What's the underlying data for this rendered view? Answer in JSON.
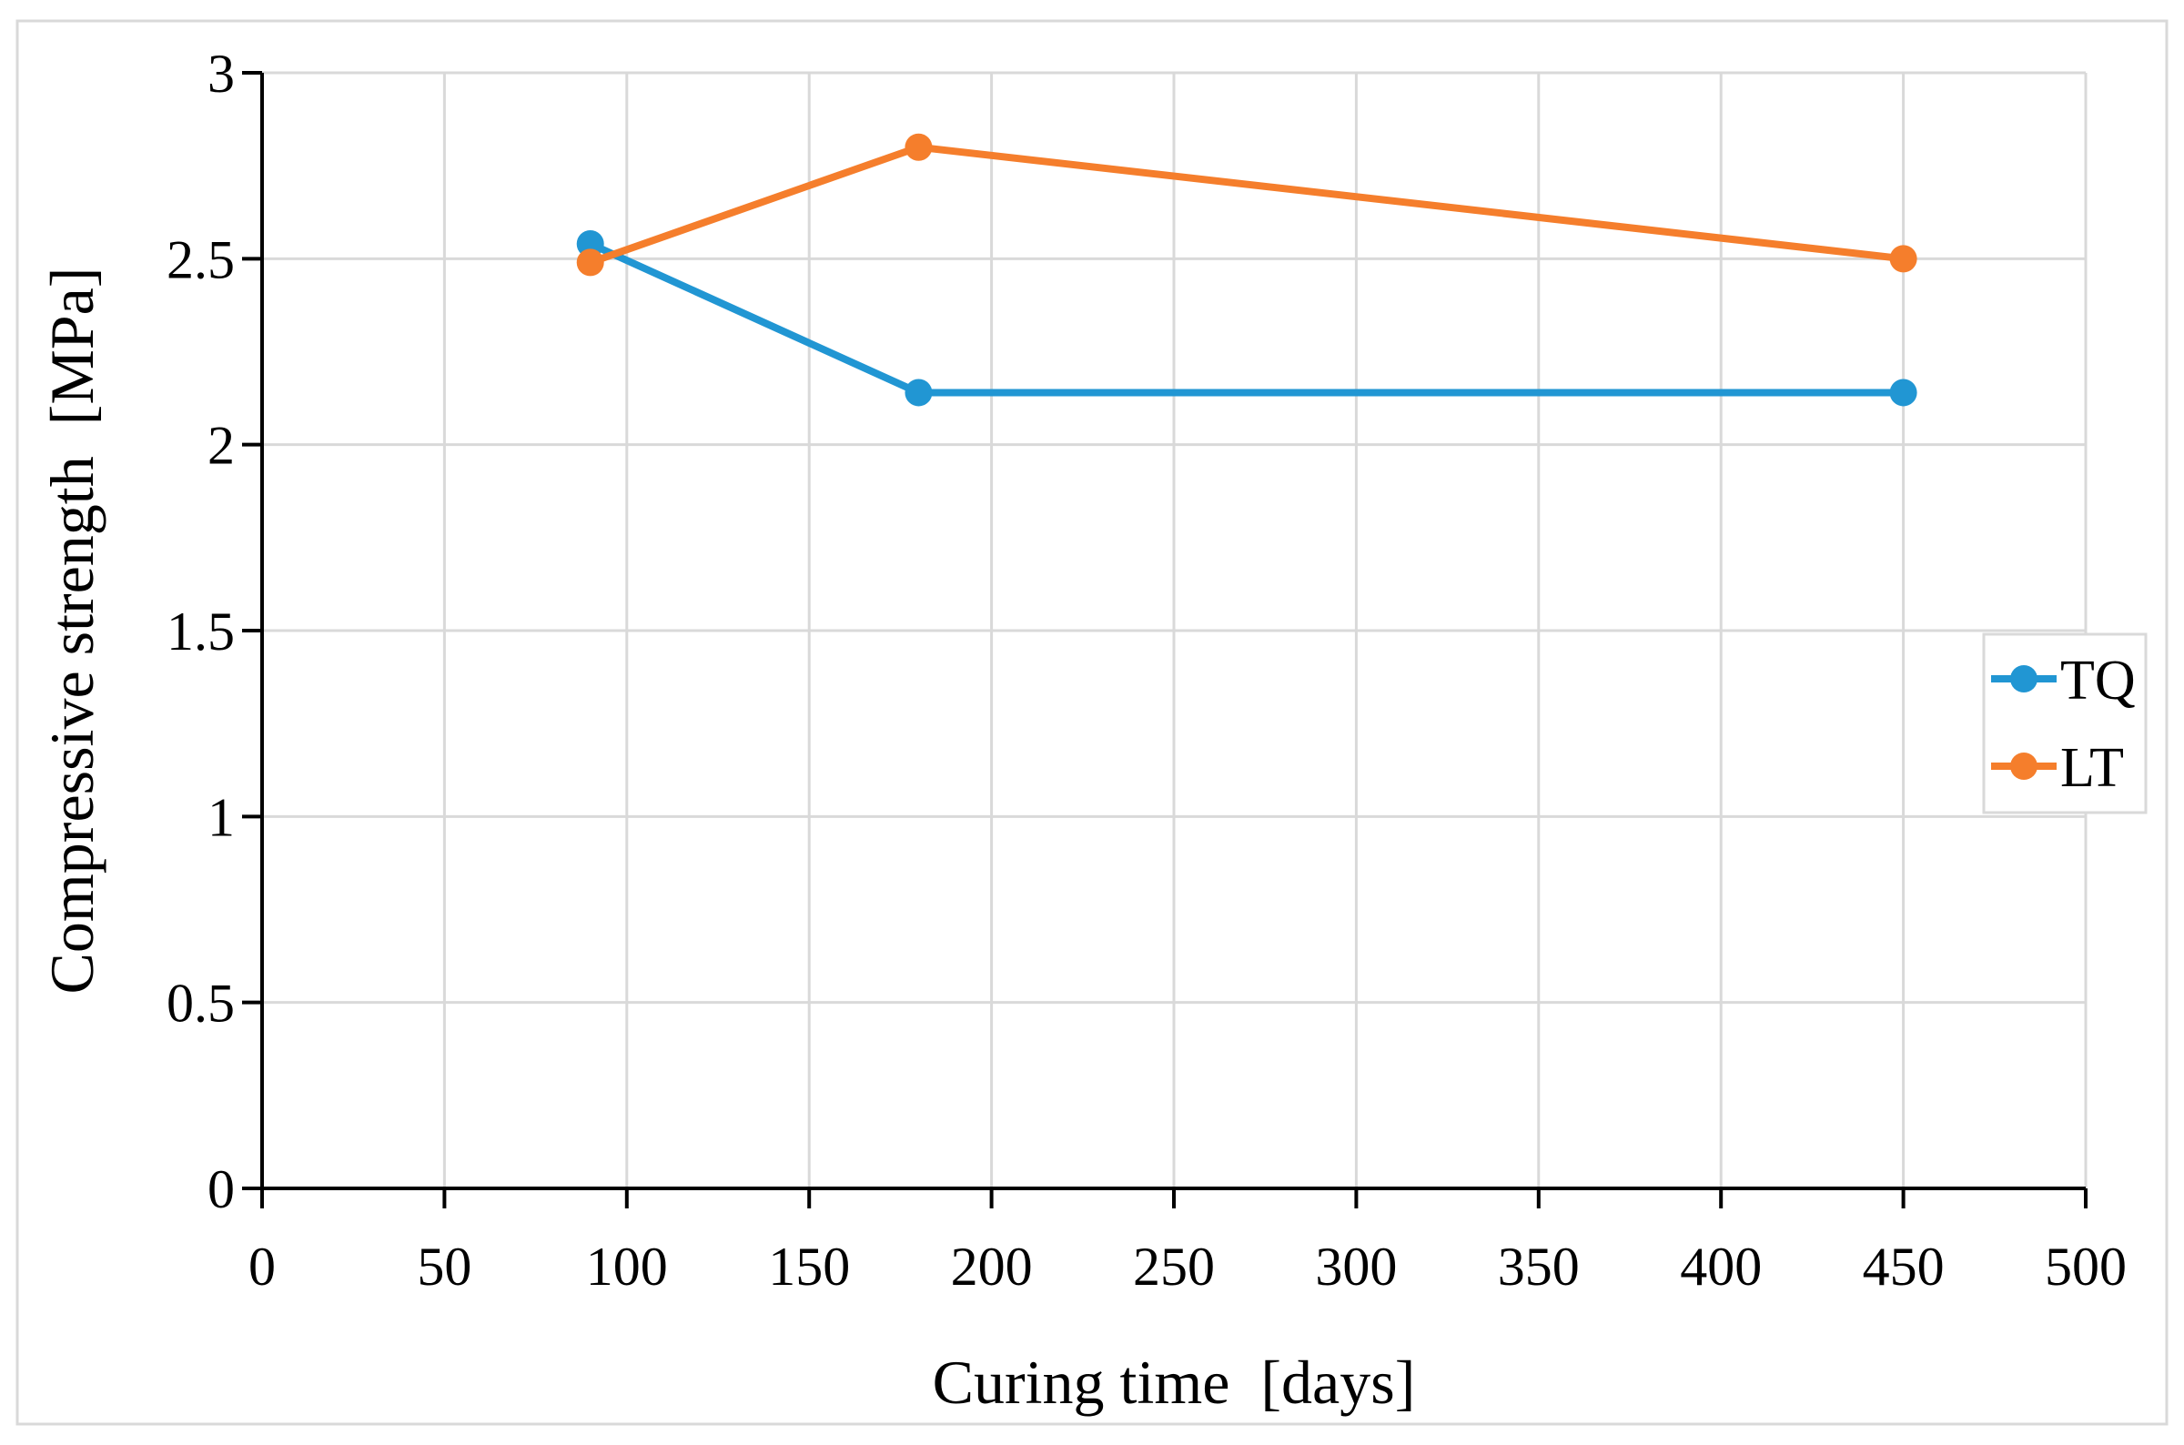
{
  "figure": {
    "background_color": "#ffffff",
    "border_color": "#d9d9d9"
  },
  "chart_data": {
    "type": "line",
    "title": "",
    "xlabel": "Curing time  [days]",
    "ylabel": "Compressive strength  [MPa]",
    "xlim": [
      0,
      500
    ],
    "ylim": [
      0,
      3
    ],
    "x_tick_step": 50,
    "y_tick_step": 0.5,
    "x_tick_labels": [
      "0",
      "50",
      "100",
      "150",
      "200",
      "250",
      "300",
      "350",
      "400",
      "450",
      "500"
    ],
    "y_tick_labels": [
      "0",
      "0.5",
      "1",
      "1.5",
      "2",
      "2.5",
      "3"
    ],
    "grid": true,
    "gridline_color": "#d9d9d9",
    "axis_color": "#000000",
    "x": [
      90,
      180,
      450
    ],
    "series": [
      {
        "name": "TQ",
        "color": "#2196D3",
        "values": [
          2.54,
          2.14,
          2.14
        ]
      },
      {
        "name": "LT",
        "color": "#F57E2C",
        "values": [
          2.49,
          2.8,
          2.5
        ]
      }
    ],
    "legend": {
      "position": "middle-right",
      "items": [
        {
          "label": "TQ",
          "color": "#2196D3"
        },
        {
          "label": "LT",
          "color": "#F57E2C"
        }
      ],
      "border_color": "#d9d9d9",
      "background_color": "#ffffff"
    }
  }
}
